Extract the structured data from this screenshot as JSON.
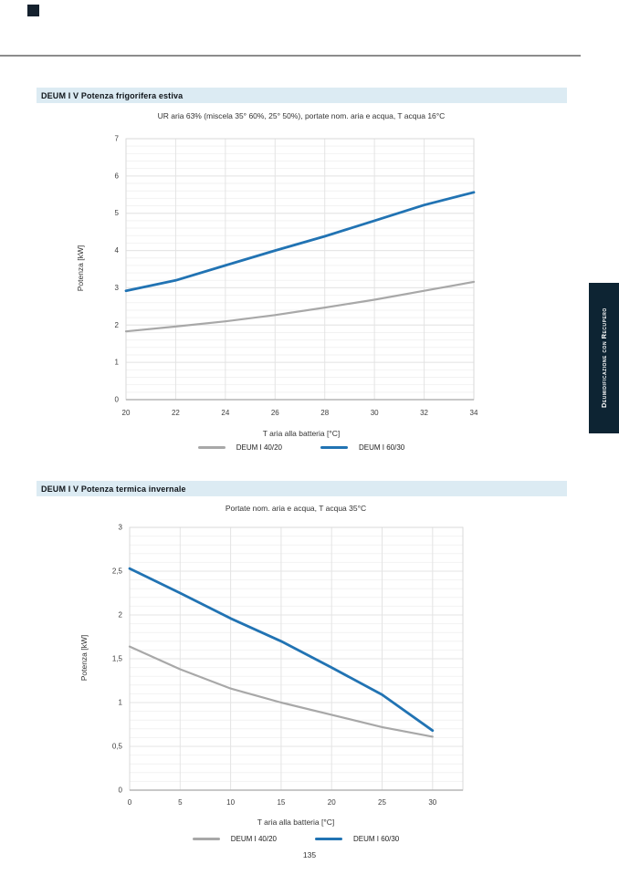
{
  "page": {
    "number": "135"
  },
  "side_tab": {
    "label": "Deumidificazione con Recupero",
    "bg": "#0d2433"
  },
  "sections": [
    {
      "banner": "DEUM I V Potenza frigorifera estiva"
    },
    {
      "banner": "DEUM I V Potenza termica invernale"
    }
  ],
  "colors": {
    "banner_bg": "#dcebf3",
    "series_gray": "#a8a8a8",
    "series_blue": "#2173b3",
    "tab_bg": "#0d2433"
  },
  "chart_data": [
    {
      "type": "line",
      "title": "UR aria 63% (miscela 35° 60%, 25° 50%), portate nom. aria e acqua, T acqua 16°C",
      "xlabel": "T aria alla batteria [°C]",
      "ylabel": "Potenza [kW]",
      "xlim": [
        20,
        34
      ],
      "ylim": [
        0,
        7
      ],
      "xticks": [
        20,
        22,
        24,
        26,
        28,
        30,
        32,
        34
      ],
      "xtick_labels": [
        "20",
        "22",
        "24",
        "26",
        "28",
        "30",
        "32",
        "34"
      ],
      "yticks": [
        0,
        1,
        2,
        3,
        4,
        5,
        6,
        7
      ],
      "ytick_labels": [
        "0",
        "1",
        "2",
        "3",
        "4",
        "5",
        "6",
        "7"
      ],
      "minor_y_step": 0.2,
      "grid": true,
      "legend_position": "bottom",
      "x": [
        20,
        22,
        24,
        26,
        28,
        30,
        32,
        34
      ],
      "series": [
        {
          "name": "DEUM I 40/20",
          "color": "#a8a8a8",
          "values": [
            1.83,
            1.96,
            2.1,
            2.27,
            2.47,
            2.68,
            2.92,
            3.16
          ]
        },
        {
          "name": "DEUM I 60/30",
          "color": "#2173b3",
          "values": [
            2.92,
            3.2,
            3.6,
            4.0,
            4.38,
            4.8,
            5.22,
            5.56
          ]
        }
      ]
    },
    {
      "type": "line",
      "title": "Portate nom. aria e acqua, T acqua 35°C",
      "xlabel": "T aria alla batteria [°C]",
      "ylabel": "Potenza [kW]",
      "xlim": [
        0,
        33
      ],
      "ylim": [
        0,
        3
      ],
      "xticks": [
        0,
        5,
        10,
        15,
        20,
        25,
        30
      ],
      "xtick_labels": [
        "0",
        "5",
        "10",
        "15",
        "20",
        "25",
        "30"
      ],
      "yticks": [
        0,
        0.5,
        1,
        1.5,
        2,
        2.5,
        3
      ],
      "ytick_labels": [
        "0",
        "0,5",
        "1",
        "1,5",
        "2",
        "2,5",
        "3"
      ],
      "minor_y_step": 0.1,
      "grid": true,
      "legend_position": "bottom",
      "x": [
        0,
        5,
        10,
        15,
        20,
        25,
        30
      ],
      "series": [
        {
          "name": "DEUM I 40/20",
          "color": "#a8a8a8",
          "values": [
            1.64,
            1.38,
            1.16,
            1.0,
            0.86,
            0.72,
            0.61
          ]
        },
        {
          "name": "DEUM I 60/30",
          "color": "#2173b3",
          "values": [
            2.53,
            2.25,
            1.96,
            1.7,
            1.4,
            1.09,
            0.68
          ]
        }
      ]
    }
  ]
}
